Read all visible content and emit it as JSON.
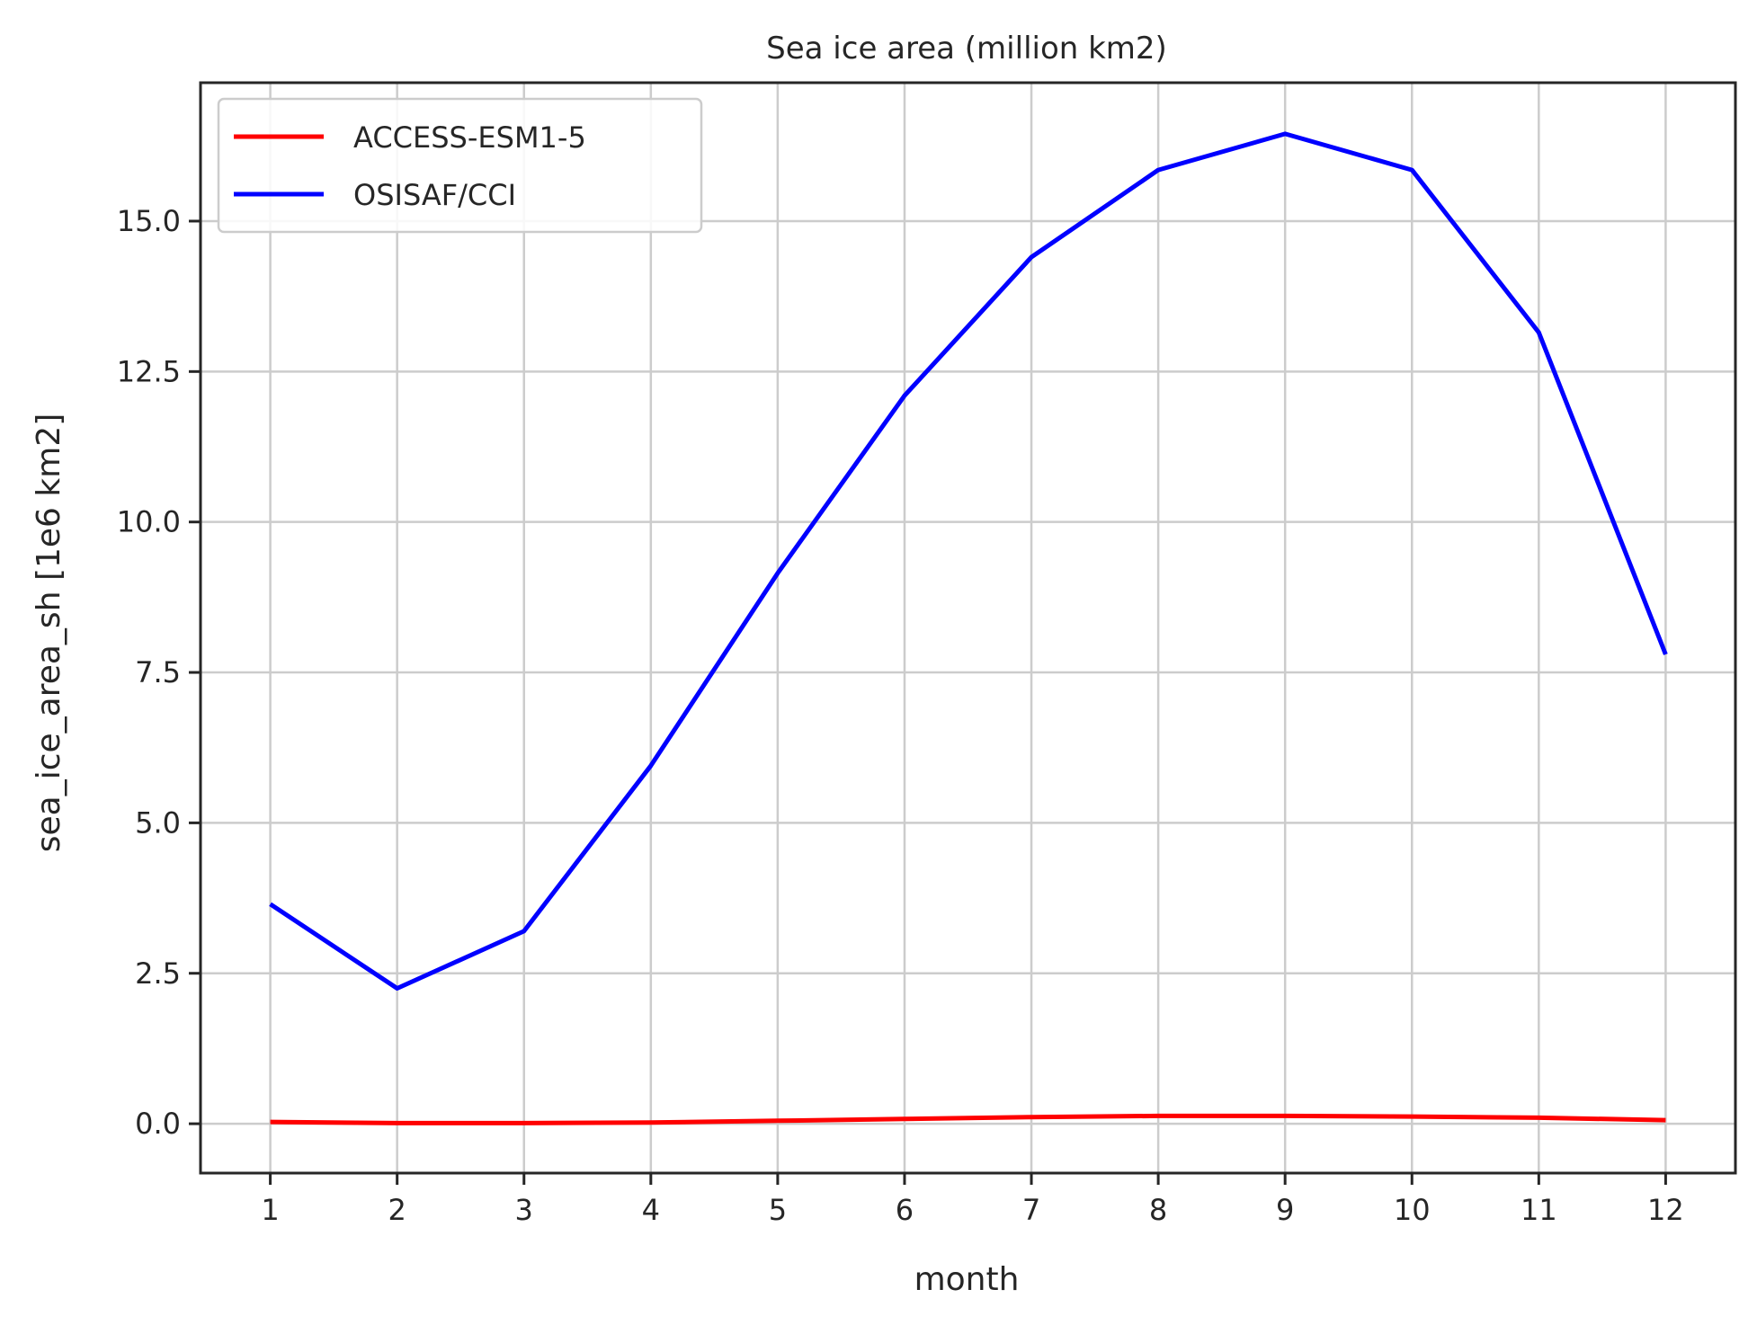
{
  "chart_data": {
    "type": "line",
    "title": "Sea ice area (million km2)",
    "xlabel": "month",
    "ylabel": "sea_ice_area_sh [1e6 km2]",
    "x": [
      1,
      2,
      3,
      4,
      5,
      6,
      7,
      8,
      9,
      10,
      11,
      12
    ],
    "x_ticks": [
      "1",
      "2",
      "3",
      "4",
      "5",
      "6",
      "7",
      "8",
      "9",
      "10",
      "11",
      "12"
    ],
    "y_ticks": [
      "0.0",
      "2.5",
      "5.0",
      "7.5",
      "10.0",
      "12.5",
      "15.0"
    ],
    "y_tick_values": [
      0,
      2.5,
      5,
      7.5,
      10,
      12.5,
      15
    ],
    "xlim": [
      0.45,
      12.55
    ],
    "ylim": [
      -0.82,
      17.3
    ],
    "grid": true,
    "legend_position": "top-left",
    "series": [
      {
        "name": "ACCESS-ESM1-5",
        "color": "#ff0000",
        "values": [
          0.03,
          0.01,
          0.01,
          0.02,
          0.05,
          0.08,
          0.11,
          0.13,
          0.13,
          0.12,
          0.1,
          0.06
        ]
      },
      {
        "name": "OSISAF/CCI",
        "color": "#0000ff",
        "values": [
          3.65,
          2.25,
          3.2,
          5.95,
          9.15,
          12.1,
          14.4,
          15.85,
          16.45,
          15.85,
          13.15,
          7.8
        ]
      }
    ]
  }
}
